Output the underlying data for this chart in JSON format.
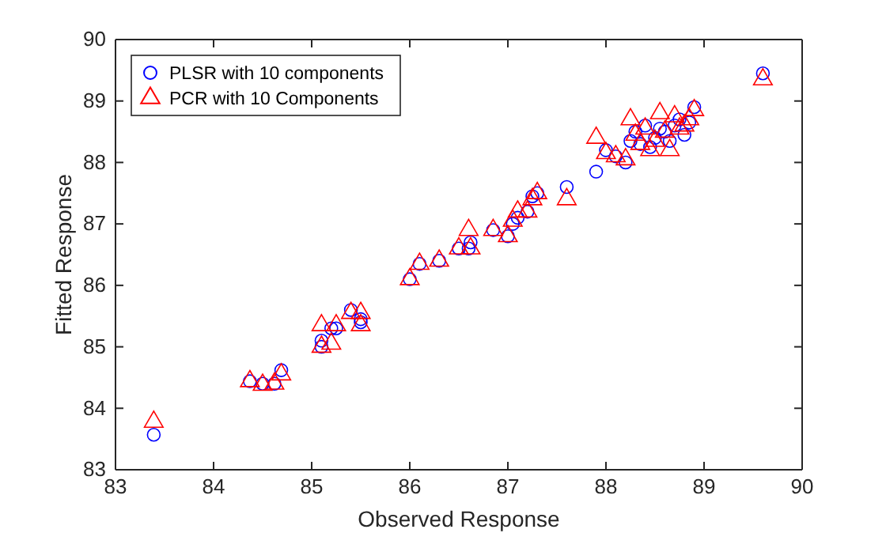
{
  "chart_data": {
    "type": "scatter",
    "xlabel": "Observed Response",
    "ylabel": "Fitted Response",
    "xlim": [
      83,
      90
    ],
    "xticks": [
      83,
      84,
      85,
      86,
      87,
      88,
      89,
      90
    ],
    "ylim": [
      83,
      90
    ],
    "yticks": [
      83,
      84,
      85,
      86,
      87,
      88,
      89,
      90
    ],
    "grid": false,
    "legend": "top left",
    "x": [
      83.39,
      84.37,
      84.5,
      84.62,
      84.69,
      85.1,
      85.1,
      85.2,
      85.25,
      85.4,
      85.5,
      85.5,
      86.0,
      86.1,
      86.3,
      86.5,
      86.6,
      86.62,
      86.85,
      87.0,
      87.05,
      87.1,
      87.2,
      87.25,
      87.3,
      87.6,
      87.9,
      88.0,
      88.1,
      88.2,
      88.25,
      88.3,
      88.35,
      88.4,
      88.45,
      88.5,
      88.55,
      88.6,
      88.65,
      88.7,
      88.75,
      88.8,
      88.85,
      88.9,
      89.6
    ],
    "series": [
      {
        "name": "PLSR with 10 components",
        "color": "#0000ff",
        "marker": "circle",
        "values": [
          83.57,
          84.44,
          84.4,
          84.4,
          84.62,
          85.0,
          85.1,
          85.3,
          85.3,
          85.6,
          85.4,
          85.45,
          86.1,
          86.35,
          86.4,
          86.6,
          86.6,
          86.7,
          86.9,
          86.8,
          87.0,
          87.1,
          87.2,
          87.45,
          87.5,
          87.6,
          87.85,
          88.2,
          88.1,
          88.0,
          88.35,
          88.5,
          88.3,
          88.6,
          88.25,
          88.4,
          88.55,
          88.5,
          88.35,
          88.6,
          88.7,
          88.45,
          88.65,
          88.9,
          89.45
        ]
      },
      {
        "name": "PCR with 10 Components",
        "color": "#ff0000",
        "marker": "triangle",
        "values": [
          83.78,
          84.44,
          84.38,
          84.4,
          84.55,
          85.35,
          85.0,
          85.05,
          85.35,
          85.55,
          85.55,
          85.35,
          86.1,
          86.35,
          86.4,
          86.6,
          86.9,
          86.6,
          86.9,
          86.8,
          87.05,
          87.2,
          87.2,
          87.4,
          87.5,
          87.4,
          88.4,
          88.15,
          88.1,
          88.05,
          88.7,
          88.45,
          88.3,
          88.55,
          88.2,
          88.35,
          88.8,
          88.5,
          88.2,
          88.75,
          88.55,
          88.6,
          88.7,
          88.85,
          89.35
        ]
      }
    ]
  }
}
